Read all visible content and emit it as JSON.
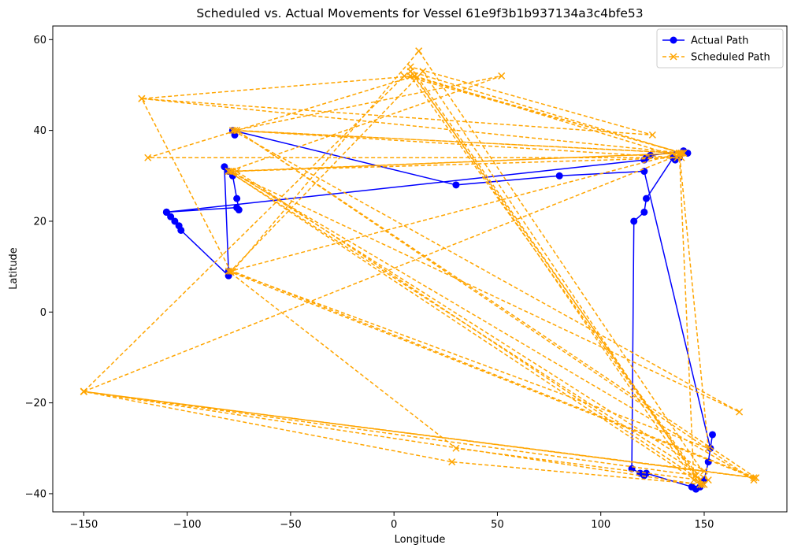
{
  "chart_data": {
    "type": "line",
    "title": "Scheduled vs. Actual Movements for Vessel 61e9f3b1b937134a3c4bfe53",
    "xlabel": "Longitude",
    "ylabel": "Latitude",
    "xlim": [
      -165,
      190
    ],
    "ylim": [
      -44,
      63
    ],
    "xticks": [
      -150,
      -100,
      -50,
      0,
      50,
      100,
      150
    ],
    "yticks": [
      -40,
      -20,
      0,
      20,
      40,
      60
    ],
    "xtick_labels": [
      "−150",
      "−100",
      "−50",
      "0",
      "50",
      "100",
      "150"
    ],
    "ytick_labels": [
      "−40",
      "−20",
      "0",
      "20",
      "40",
      "60"
    ],
    "grid": false,
    "legend_position": "top-right",
    "series": [
      {
        "name": "Actual Path",
        "color": "#0000ff",
        "linestyle": "solid",
        "marker": "circle",
        "x": [
          -110,
          -108,
          -106,
          -104,
          -103,
          -80,
          -80,
          -82,
          -80,
          -78,
          -76,
          -75,
          -76,
          -110,
          -110,
          121,
          122,
          124,
          140,
          142,
          138,
          136,
          135,
          122,
          121,
          116,
          115,
          119,
          121,
          122,
          144,
          146,
          148,
          150,
          152,
          154,
          153,
          121,
          80,
          30,
          -78,
          -77
        ],
        "y": [
          22,
          21,
          20,
          19,
          18,
          8,
          9,
          32,
          31,
          30,
          25,
          22.5,
          23,
          22,
          22,
          33.5,
          34,
          34.5,
          35.5,
          35,
          34,
          33.5,
          34,
          25,
          22,
          20,
          -34.5,
          -35.5,
          -36,
          -35.5,
          -38.5,
          -39,
          -38.5,
          -37,
          -33,
          -27,
          -30,
          31,
          30,
          28,
          40,
          39
        ]
      },
      {
        "name": "Scheduled Path",
        "color": "#ffa500",
        "linestyle": "dashed",
        "marker": "x",
        "x": [
          -150,
          140,
          -122,
          10,
          -119,
          137,
          -77,
          52,
          -80,
          152,
          12,
          -78,
          175,
          -150,
          28,
          150,
          8,
          139,
          -76,
          148,
          30,
          -80,
          174,
          -150,
          5,
          140,
          -78,
          167,
          -80,
          149,
          8,
          125,
          -122,
          -79,
          138,
          145,
          10,
          139,
          -78,
          150,
          -150,
          175,
          -76,
          138,
          152,
          -79,
          14,
          148,
          -150,
          146,
          8,
          139,
          -79,
          174,
          -76
        ],
        "y": [
          -17.5,
          35,
          47,
          52,
          34,
          34,
          40,
          52,
          31,
          -37,
          57.5,
          9,
          -36.5,
          -17.5,
          -33,
          -38,
          53,
          35,
          31,
          -37,
          -30,
          9,
          -36.5,
          -17.5,
          52,
          35,
          40,
          -22,
          31,
          -38,
          54,
          39,
          47,
          9,
          35,
          -37,
          52,
          34,
          31,
          -35,
          -17.5,
          -36.5,
          40,
          35,
          -30,
          9,
          53,
          -38,
          -17.5,
          -36,
          52,
          35,
          31,
          -37,
          40
        ]
      }
    ]
  }
}
